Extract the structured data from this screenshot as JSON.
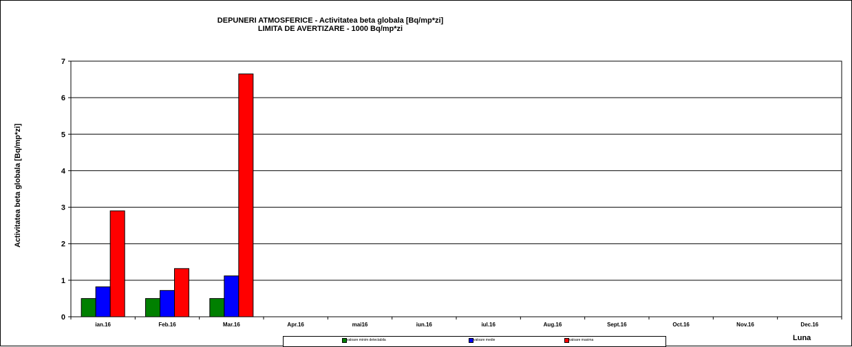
{
  "chart_data": {
    "type": "bar",
    "title": "DEPUNERI ATMOSFERICE - Activitatea beta globala [Bq/mp*zi]",
    "subtitle": "LIMITA DE AVERTIZARE - 1000 Bq/mp*zi",
    "xlabel": "Luna",
    "ylabel": "Activitatea beta globala [Bq/mp*zi]",
    "ylim": [
      0,
      7
    ],
    "yticks": [
      "0",
      "1",
      "2",
      "3",
      "4",
      "5",
      "6",
      "7"
    ],
    "grid": true,
    "legend_position": "bottom",
    "categories": [
      "ian.16",
      "Feb.16",
      "Mar.16",
      "Apr.16",
      "mai16",
      "iun.16",
      "iul.16",
      "Aug.16",
      "Sept.16",
      "Oct.16",
      "Nov.16",
      "Dec.16"
    ],
    "series": [
      {
        "name": "valoare minim detectabila",
        "color": "#008000",
        "values": [
          0.5,
          0.5,
          0.5,
          null,
          null,
          null,
          null,
          null,
          null,
          null,
          null,
          null
        ]
      },
      {
        "name": "valoare medie",
        "color": "#0000ff",
        "values": [
          0.82,
          0.72,
          1.12,
          null,
          null,
          null,
          null,
          null,
          null,
          null,
          null,
          null
        ]
      },
      {
        "name": "valoare maxima",
        "color": "#ff0000",
        "values": [
          2.9,
          1.32,
          6.65,
          null,
          null,
          null,
          null,
          null,
          null,
          null,
          null,
          null
        ]
      }
    ]
  }
}
